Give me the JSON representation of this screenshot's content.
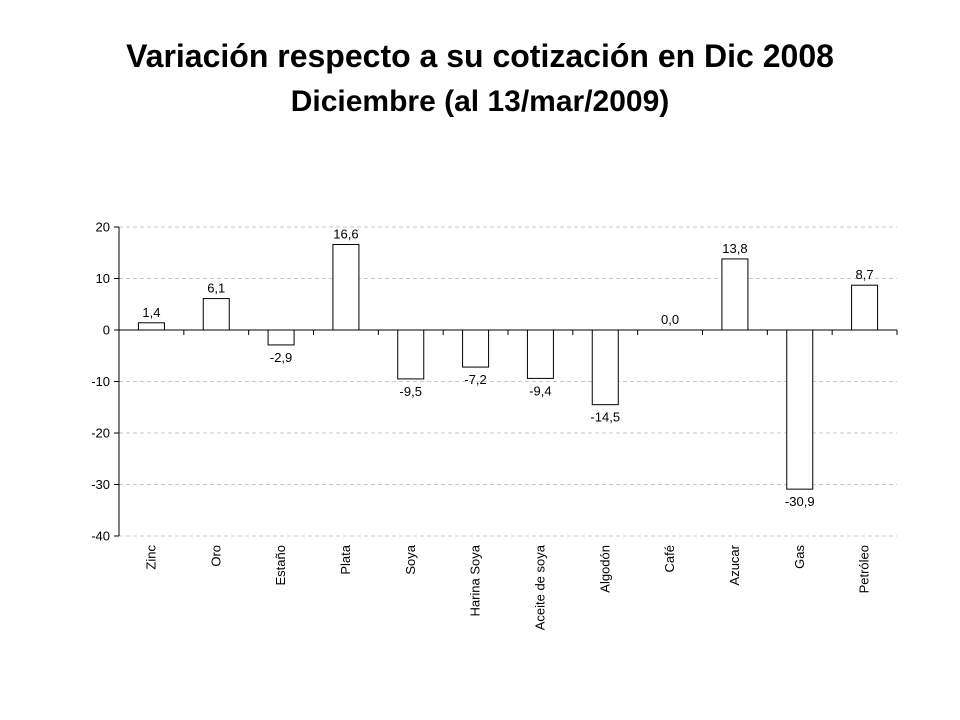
{
  "chart_data": {
    "type": "bar",
    "title": "Variación respecto a su cotización en Dic 2008",
    "subtitle": "Diciembre (al 13/mar/2009)",
    "categories": [
      "Zinc",
      "Oro",
      "Estaño",
      "Plata",
      "Soya",
      "Harina Soya",
      "Aceite de soya",
      "Algodón",
      "Café",
      "Azucar",
      "Gas",
      "Petróleo"
    ],
    "values": [
      1.4,
      6.1,
      -2.9,
      16.6,
      -9.5,
      -7.2,
      -9.4,
      -14.5,
      0.0,
      13.8,
      -30.9,
      8.7
    ],
    "value_labels": [
      "1,4",
      "6,1",
      "-2,9",
      "16,6",
      "-9,5",
      "-7,2",
      "-9,4",
      "-14,5",
      "0,0",
      "13,8",
      "-30,9",
      "8,7"
    ],
    "yticks": [
      20,
      10,
      0,
      -10,
      -20,
      -30,
      -40
    ],
    "ylim": [
      -40,
      20
    ],
    "grid": true,
    "legend": "none",
    "colors": {
      "bar_fill": "#ffffff",
      "bar_stroke": "#000000",
      "grid": "#c8c8c8"
    }
  }
}
